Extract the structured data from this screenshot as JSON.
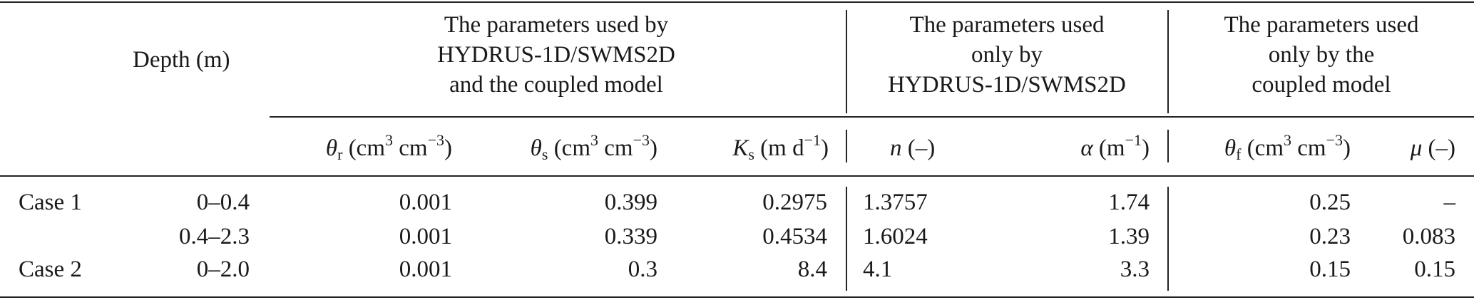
{
  "table": {
    "depth_header": "Depth (m)",
    "groups": [
      {
        "lines": [
          "The parameters used by",
          "HYDRUS-1D/SWMS2D",
          "and the coupled model"
        ]
      },
      {
        "lines": [
          "The parameters used",
          "only by",
          "HYDRUS-1D/SWMS2D"
        ]
      },
      {
        "lines": [
          "The parameters used",
          "only by the",
          "coupled model"
        ]
      }
    ],
    "columns": {
      "theta_r": {
        "sym": "θ",
        "sub": "r",
        "unit_a": " (cm",
        "sup_a": "3",
        "unit_b": " cm",
        "sup_b": "−3",
        "unit_c": ")"
      },
      "theta_s": {
        "sym": "θ",
        "sub": "s",
        "unit_a": " (cm",
        "sup_a": "3",
        "unit_b": " cm",
        "sup_b": "−3",
        "unit_c": ")"
      },
      "ks": {
        "sym": "K",
        "sub": "s",
        "unit_a": " (m d",
        "sup_a": "−1",
        "unit_c": ")"
      },
      "n": {
        "sym": "n",
        "unit_c": " (–)"
      },
      "alpha": {
        "sym": "α",
        "unit_a": " (m",
        "sup_a": "−1",
        "unit_c": ")"
      },
      "theta_f": {
        "sym": "θ",
        "sub": "f",
        "unit_a": " (cm",
        "sup_a": "3",
        "unit_b": " cm",
        "sup_b": "−3",
        "unit_c": ")"
      },
      "mu": {
        "sym": "μ",
        "unit_c": " (–)"
      }
    },
    "rows": [
      {
        "case": "Case 1",
        "depth": "0–0.4",
        "theta_r": "0.001",
        "theta_s": "0.399",
        "ks": "0.2975",
        "n": "1.3757",
        "alpha": "1.74",
        "theta_f": "0.25",
        "mu": "–"
      },
      {
        "case": "",
        "depth": "0.4–2.3",
        "theta_r": "0.001",
        "theta_s": "0.339",
        "ks": "0.4534",
        "n": "1.6024",
        "alpha": "1.39",
        "theta_f": "0.23",
        "mu": "0.083"
      },
      {
        "case": "Case 2",
        "depth": "0–2.0",
        "theta_r": "0.001",
        "theta_s": "0.3",
        "ks": "8.4",
        "n": "4.1",
        "alpha": "3.3",
        "theta_f": "0.15",
        "mu": "0.15"
      }
    ]
  }
}
